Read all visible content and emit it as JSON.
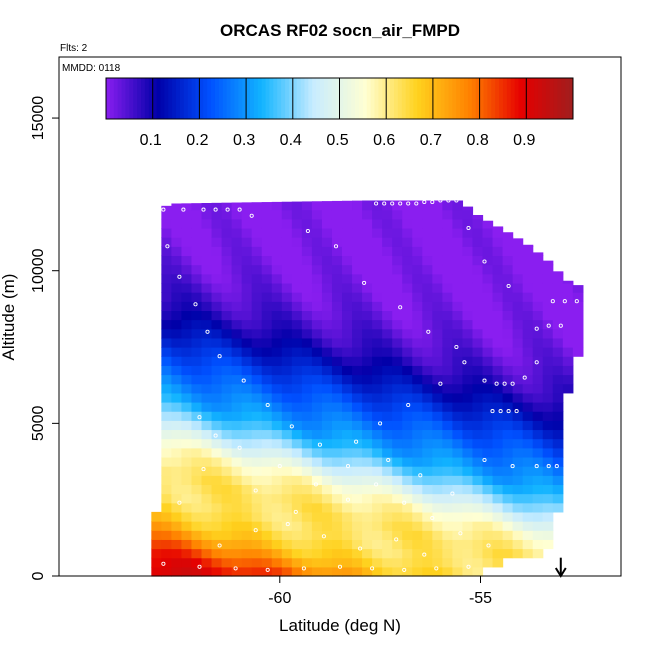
{
  "chart_data": {
    "type": "heatmap",
    "title": "ORCAS RF02 socn_air_FMPD",
    "flights_note": "Flts: 2",
    "date_note": "MMDD: 0118",
    "xlabel": "Latitude (deg N)",
    "ylabel": "Altitude (m)",
    "xlim": [
      -65.5,
      -51.5
    ],
    "ylim": [
      0,
      17000
    ],
    "x_ticks": [
      -60,
      -55
    ],
    "x_tick_labels": [
      "-60",
      "-55"
    ],
    "y_ticks": [
      0,
      5000,
      10000,
      15000
    ],
    "y_tick_labels": [
      "0",
      "5000",
      "10000",
      "15000"
    ],
    "colorbar": {
      "range": [
        0,
        1
      ],
      "ticks": [
        0.1,
        0.2,
        0.3,
        0.4,
        0.5,
        0.6,
        0.7,
        0.8,
        0.9
      ],
      "tick_labels": [
        "0.1",
        "0.2",
        "0.3",
        "0.4",
        "0.5",
        "0.6",
        "0.7",
        "0.8",
        "0.9"
      ],
      "stops": [
        "#8a1ef0",
        "#0000a8",
        "#0050ff",
        "#12b4ff",
        "#c8ecff",
        "#ffffd2",
        "#ffd21e",
        "#ff8200",
        "#e60000",
        "#a01e1e"
      ]
    },
    "grid": {
      "lat_start": -63.2,
      "lat_end": -52.3,
      "lat_step": 0.25,
      "alt_step": 300,
      "top_altitudes": [
        {
          "lat": -63.2,
          "alt": 12000
        },
        {
          "lat": -62.8,
          "alt": 12200
        },
        {
          "lat": -58.0,
          "alt": 12300
        },
        {
          "lat": -55.6,
          "alt": 12300
        },
        {
          "lat": -55.3,
          "alt": 11900
        },
        {
          "lat": -54.5,
          "alt": 11300
        },
        {
          "lat": -54.0,
          "alt": 10900
        },
        {
          "lat": -53.5,
          "alt": 10400
        },
        {
          "lat": -53.0,
          "alt": 9700
        },
        {
          "lat": -52.3,
          "alt": 9300
        }
      ],
      "bottom_right_edge": [
        {
          "alt": 0,
          "lat": -54.8
        },
        {
          "alt": 300,
          "lat": -54.4
        },
        {
          "alt": 700,
          "lat": -53.1
        },
        {
          "alt": 1800,
          "lat": -53.0
        },
        {
          "alt": 3000,
          "lat": -52.8
        },
        {
          "alt": 5000,
          "lat": -52.9
        },
        {
          "alt": 6500,
          "lat": -52.5
        },
        {
          "alt": 9300,
          "lat": -52.3
        }
      ],
      "bottom_left_edge": [
        {
          "alt": 0,
          "lat": -63.2
        },
        {
          "alt": 2000,
          "lat": -63.2
        },
        {
          "alt": 2200,
          "lat": -63.0
        },
        {
          "alt": 12000,
          "lat": -63.0
        }
      ],
      "profile": [
        {
          "alt": 0,
          "value": 0.92
        },
        {
          "alt": 600,
          "value": 0.88
        },
        {
          "alt": 1200,
          "value": 0.78
        },
        {
          "alt": 1800,
          "value": 0.68
        },
        {
          "alt": 2600,
          "value": 0.62
        },
        {
          "alt": 3400,
          "value": 0.63
        },
        {
          "alt": 4200,
          "value": 0.57
        },
        {
          "alt": 5000,
          "value": 0.44
        },
        {
          "alt": 5800,
          "value": 0.32
        },
        {
          "alt": 6600,
          "value": 0.26
        },
        {
          "alt": 7400,
          "value": 0.2
        },
        {
          "alt": 8200,
          "value": 0.13
        },
        {
          "alt": 9000,
          "value": 0.07
        },
        {
          "alt": 10000,
          "value": 0.03
        },
        {
          "alt": 11000,
          "value": 0.01
        },
        {
          "alt": 12300,
          "value": 0.0
        }
      ],
      "north_shift_m_per_deg": 330
    },
    "flight_track_points": [
      {
        "lat": -62.9,
        "alt": 12000
      },
      {
        "lat": -62.4,
        "alt": 12000
      },
      {
        "lat": -61.9,
        "alt": 12000
      },
      {
        "lat": -61.6,
        "alt": 12000
      },
      {
        "lat": -61.3,
        "alt": 12000
      },
      {
        "lat": -61.0,
        "alt": 12000
      },
      {
        "lat": -60.7,
        "alt": 11800
      },
      {
        "lat": -57.6,
        "alt": 12200
      },
      {
        "lat": -57.4,
        "alt": 12200
      },
      {
        "lat": -57.2,
        "alt": 12200
      },
      {
        "lat": -57.0,
        "alt": 12200
      },
      {
        "lat": -56.8,
        "alt": 12200
      },
      {
        "lat": -56.6,
        "alt": 12200
      },
      {
        "lat": -56.4,
        "alt": 12250
      },
      {
        "lat": -56.2,
        "alt": 12250
      },
      {
        "lat": -56.0,
        "alt": 12300
      },
      {
        "lat": -55.8,
        "alt": 12300
      },
      {
        "lat": -55.6,
        "alt": 12300
      },
      {
        "lat": -62.8,
        "alt": 10800
      },
      {
        "lat": -62.5,
        "alt": 9800
      },
      {
        "lat": -62.1,
        "alt": 8900
      },
      {
        "lat": -61.8,
        "alt": 8000
      },
      {
        "lat": -61.5,
        "alt": 7200
      },
      {
        "lat": -60.9,
        "alt": 6400
      },
      {
        "lat": -60.3,
        "alt": 5600
      },
      {
        "lat": -59.7,
        "alt": 4900
      },
      {
        "lat": -59.0,
        "alt": 4300
      },
      {
        "lat": -58.3,
        "alt": 3600
      },
      {
        "lat": -57.6,
        "alt": 3000
      },
      {
        "lat": -56.9,
        "alt": 2400
      },
      {
        "lat": -56.2,
        "alt": 1900
      },
      {
        "lat": -55.5,
        "alt": 1400
      },
      {
        "lat": -54.8,
        "alt": 1000
      },
      {
        "lat": -62.9,
        "alt": 400
      },
      {
        "lat": -62.0,
        "alt": 300
      },
      {
        "lat": -61.1,
        "alt": 250
      },
      {
        "lat": -60.3,
        "alt": 200
      },
      {
        "lat": -59.4,
        "alt": 250
      },
      {
        "lat": -58.5,
        "alt": 300
      },
      {
        "lat": -57.7,
        "alt": 250
      },
      {
        "lat": -56.9,
        "alt": 200
      },
      {
        "lat": -56.1,
        "alt": 250
      },
      {
        "lat": -55.3,
        "alt": 300
      },
      {
        "lat": -61.5,
        "alt": 1000
      },
      {
        "lat": -60.6,
        "alt": 1500
      },
      {
        "lat": -59.8,
        "alt": 1700
      },
      {
        "lat": -58.9,
        "alt": 1300
      },
      {
        "lat": -58.0,
        "alt": 900
      },
      {
        "lat": -57.1,
        "alt": 1200
      },
      {
        "lat": -56.4,
        "alt": 700
      },
      {
        "lat": -62.5,
        "alt": 2400
      },
      {
        "lat": -61.9,
        "alt": 3500
      },
      {
        "lat": -61.0,
        "alt": 4200
      },
      {
        "lat": -60.0,
        "alt": 3600
      },
      {
        "lat": -59.1,
        "alt": 3000
      },
      {
        "lat": -58.3,
        "alt": 2500
      },
      {
        "lat": -57.5,
        "alt": 5000
      },
      {
        "lat": -56.8,
        "alt": 5600
      },
      {
        "lat": -56.0,
        "alt": 6300
      },
      {
        "lat": -55.4,
        "alt": 7000
      },
      {
        "lat": -54.9,
        "alt": 6400
      },
      {
        "lat": -54.7,
        "alt": 5400
      },
      {
        "lat": -54.5,
        "alt": 5400
      },
      {
        "lat": -54.3,
        "alt": 5400
      },
      {
        "lat": -54.1,
        "alt": 5400
      },
      {
        "lat": -54.6,
        "alt": 6300
      },
      {
        "lat": -54.4,
        "alt": 6300
      },
      {
        "lat": -54.2,
        "alt": 6300
      },
      {
        "lat": -53.9,
        "alt": 6500
      },
      {
        "lat": -53.6,
        "alt": 7000
      },
      {
        "lat": -53.3,
        "alt": 8200
      },
      {
        "lat": -53.0,
        "alt": 8200
      },
      {
        "lat": -53.6,
        "alt": 8100
      },
      {
        "lat": -53.2,
        "alt": 9000
      },
      {
        "lat": -52.9,
        "alt": 9000
      },
      {
        "lat": -52.6,
        "alt": 9000
      },
      {
        "lat": -52.3,
        "alt": 9000
      },
      {
        "lat": -54.3,
        "alt": 9500
      },
      {
        "lat": -54.9,
        "alt": 10300
      },
      {
        "lat": -55.3,
        "alt": 11400
      },
      {
        "lat": -59.3,
        "alt": 11300
      },
      {
        "lat": -58.6,
        "alt": 10800
      },
      {
        "lat": -57.9,
        "alt": 9600
      },
      {
        "lat": -57.0,
        "alt": 8800
      },
      {
        "lat": -56.3,
        "alt": 8000
      },
      {
        "lat": -55.6,
        "alt": 7500
      },
      {
        "lat": -62.0,
        "alt": 5200
      },
      {
        "lat": -61.6,
        "alt": 4600
      },
      {
        "lat": -60.6,
        "alt": 2800
      },
      {
        "lat": -59.6,
        "alt": 2100
      },
      {
        "lat": -58.1,
        "alt": 4400
      },
      {
        "lat": -57.3,
        "alt": 3800
      },
      {
        "lat": -56.5,
        "alt": 3300
      },
      {
        "lat": -55.7,
        "alt": 2700
      },
      {
        "lat": -54.9,
        "alt": 3800
      },
      {
        "lat": -54.2,
        "alt": 3600
      },
      {
        "lat": -53.6,
        "alt": 3600
      },
      {
        "lat": -53.3,
        "alt": 3600
      },
      {
        "lat": -53.1,
        "alt": 3600
      }
    ],
    "marker": {
      "type": "arrow-down",
      "lat": -53.0,
      "alt_from": 600,
      "alt_to": 0,
      "note": "end-of-flight arrow"
    }
  }
}
